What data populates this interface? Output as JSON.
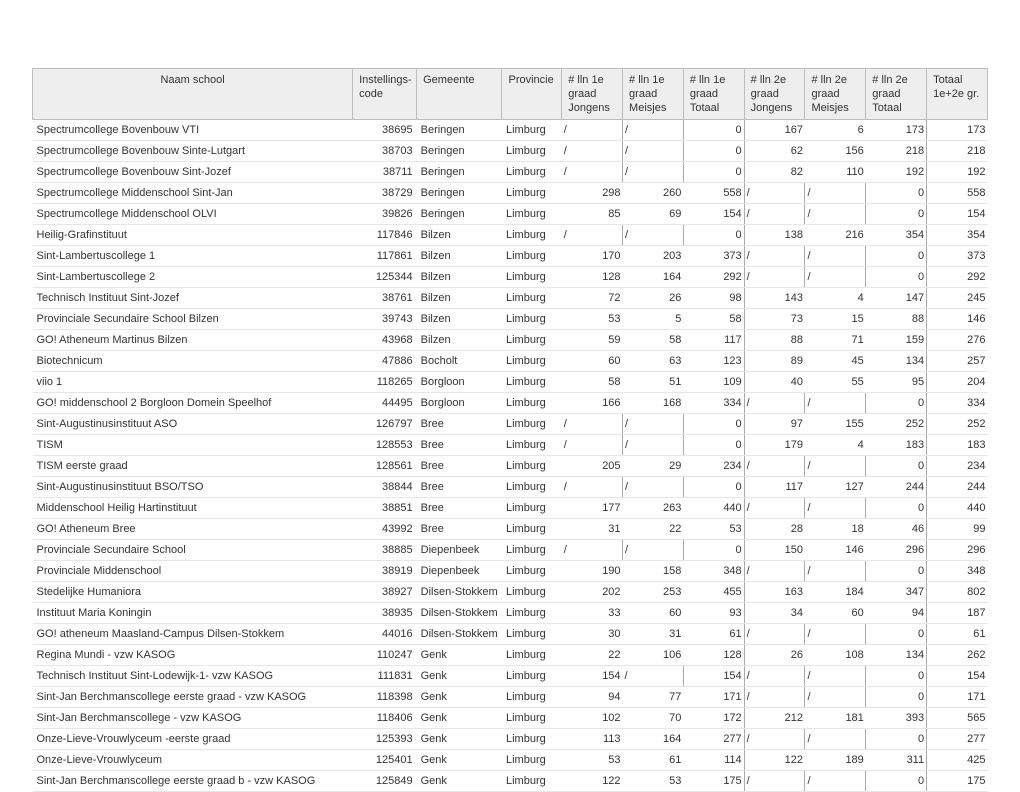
{
  "columns": [
    {
      "key": "naam",
      "label": "Naam school",
      "lines": [
        ""
      ]
    },
    {
      "key": "code",
      "label": "Instellings-",
      "lines": [
        "code"
      ]
    },
    {
      "key": "gemeente",
      "label": "Gemeente",
      "lines": [
        ""
      ]
    },
    {
      "key": "provincie",
      "label": "Provincie",
      "lines": [
        ""
      ]
    },
    {
      "key": "j1",
      "label": "# lln 1e",
      "lines": [
        "graad",
        "Jongens"
      ]
    },
    {
      "key": "m1",
      "label": "# lln 1e",
      "lines": [
        "graad",
        "Meisjes"
      ]
    },
    {
      "key": "t1",
      "label": "# lln 1e",
      "lines": [
        "graad",
        "Totaal"
      ]
    },
    {
      "key": "j2",
      "label": "# lln 2e",
      "lines": [
        "graad",
        "Jongens"
      ]
    },
    {
      "key": "m2",
      "label": "# lln 2e",
      "lines": [
        "graad",
        "Meisjes"
      ]
    },
    {
      "key": "t2",
      "label": "# lln 2e",
      "lines": [
        "graad",
        "Totaal"
      ]
    },
    {
      "key": "tot",
      "label": "Totaal",
      "lines": [
        "1e+2e gr."
      ]
    }
  ],
  "rows": [
    {
      "naam": "Spectrumcollege Bovenbouw VTI",
      "code": "38695",
      "gemeente": "Beringen",
      "provincie": "Limburg",
      "j1": "/",
      "m1": "/",
      "t1": "0",
      "j2": "167",
      "m2": "6",
      "t2": "173",
      "tot": "173"
    },
    {
      "naam": "Spectrumcollege Bovenbouw Sinte-Lutgart",
      "code": "38703",
      "gemeente": "Beringen",
      "provincie": "Limburg",
      "j1": "/",
      "m1": "/",
      "t1": "0",
      "j2": "62",
      "m2": "156",
      "t2": "218",
      "tot": "218"
    },
    {
      "naam": "Spectrumcollege Bovenbouw Sint-Jozef",
      "code": "38711",
      "gemeente": "Beringen",
      "provincie": "Limburg",
      "j1": "/",
      "m1": "/",
      "t1": "0",
      "j2": "82",
      "m2": "110",
      "t2": "192",
      "tot": "192"
    },
    {
      "naam": "Spectrumcollege Middenschool Sint-Jan",
      "code": "38729",
      "gemeente": "Beringen",
      "provincie": "Limburg",
      "j1": "298",
      "m1": "260",
      "t1": "558",
      "j2": "/",
      "m2": "/",
      "t2": "0",
      "tot": "558"
    },
    {
      "naam": "Spectrumcollege Middenschool OLVI",
      "code": "39826",
      "gemeente": "Beringen",
      "provincie": "Limburg",
      "j1": "85",
      "m1": "69",
      "t1": "154",
      "j2": "/",
      "m2": "/",
      "t2": "0",
      "tot": "154"
    },
    {
      "naam": "Heilig-Grafinstituut",
      "code": "117846",
      "gemeente": "Bilzen",
      "provincie": "Limburg",
      "j1": "/",
      "m1": "/",
      "t1": "0",
      "j2": "138",
      "m2": "216",
      "t2": "354",
      "tot": "354"
    },
    {
      "naam": "Sint-Lambertuscollege 1",
      "code": "117861",
      "gemeente": "Bilzen",
      "provincie": "Limburg",
      "j1": "170",
      "m1": "203",
      "t1": "373",
      "j2": "/",
      "m2": "/",
      "t2": "0",
      "tot": "373"
    },
    {
      "naam": "Sint-Lambertuscollege 2",
      "code": "125344",
      "gemeente": "Bilzen",
      "provincie": "Limburg",
      "j1": "128",
      "m1": "164",
      "t1": "292",
      "j2": "/",
      "m2": "/",
      "t2": "0",
      "tot": "292"
    },
    {
      "naam": "Technisch Instituut Sint-Jozef",
      "code": "38761",
      "gemeente": "Bilzen",
      "provincie": "Limburg",
      "j1": "72",
      "m1": "26",
      "t1": "98",
      "j2": "143",
      "m2": "4",
      "t2": "147",
      "tot": "245"
    },
    {
      "naam": "Provinciale Secundaire School Bilzen",
      "code": "39743",
      "gemeente": "Bilzen",
      "provincie": "Limburg",
      "j1": "53",
      "m1": "5",
      "t1": "58",
      "j2": "73",
      "m2": "15",
      "t2": "88",
      "tot": "146"
    },
    {
      "naam": "GO! Atheneum Martinus Bilzen",
      "code": "43968",
      "gemeente": "Bilzen",
      "provincie": "Limburg",
      "j1": "59",
      "m1": "58",
      "t1": "117",
      "j2": "88",
      "m2": "71",
      "t2": "159",
      "tot": "276"
    },
    {
      "naam": "Biotechnicum",
      "code": "47886",
      "gemeente": "Bocholt",
      "provincie": "Limburg",
      "j1": "60",
      "m1": "63",
      "t1": "123",
      "j2": "89",
      "m2": "45",
      "t2": "134",
      "tot": "257"
    },
    {
      "naam": "viio 1",
      "code": "118265",
      "gemeente": "Borgloon",
      "provincie": "Limburg",
      "j1": "58",
      "m1": "51",
      "t1": "109",
      "j2": "40",
      "m2": "55",
      "t2": "95",
      "tot": "204"
    },
    {
      "naam": "GO! middenschool 2 Borgloon Domein Speelhof",
      "code": "44495",
      "gemeente": "Borgloon",
      "provincie": "Limburg",
      "j1": "166",
      "m1": "168",
      "t1": "334",
      "j2": "/",
      "m2": "/",
      "t2": "0",
      "tot": "334"
    },
    {
      "naam": "Sint-Augustinusinstituut ASO",
      "code": "126797",
      "gemeente": "Bree",
      "provincie": "Limburg",
      "j1": "/",
      "m1": "/",
      "t1": "0",
      "j2": "97",
      "m2": "155",
      "t2": "252",
      "tot": "252"
    },
    {
      "naam": "TISM",
      "code": "128553",
      "gemeente": "Bree",
      "provincie": "Limburg",
      "j1": "/",
      "m1": "/",
      "t1": "0",
      "j2": "179",
      "m2": "4",
      "t2": "183",
      "tot": "183"
    },
    {
      "naam": "TISM eerste graad",
      "code": "128561",
      "gemeente": "Bree",
      "provincie": "Limburg",
      "j1": "205",
      "m1": "29",
      "t1": "234",
      "j2": "/",
      "m2": "/",
      "t2": "0",
      "tot": "234"
    },
    {
      "naam": "Sint-Augustinusinstituut BSO/TSO",
      "code": "38844",
      "gemeente": "Bree",
      "provincie": "Limburg",
      "j1": "/",
      "m1": "/",
      "t1": "0",
      "j2": "117",
      "m2": "127",
      "t2": "244",
      "tot": "244"
    },
    {
      "naam": "Middenschool Heilig Hartinstituut",
      "code": "38851",
      "gemeente": "Bree",
      "provincie": "Limburg",
      "j1": "177",
      "m1": "263",
      "t1": "440",
      "j2": "/",
      "m2": "/",
      "t2": "0",
      "tot": "440"
    },
    {
      "naam": "GO! Atheneum Bree",
      "code": "43992",
      "gemeente": "Bree",
      "provincie": "Limburg",
      "j1": "31",
      "m1": "22",
      "t1": "53",
      "j2": "28",
      "m2": "18",
      "t2": "46",
      "tot": "99"
    },
    {
      "naam": "Provinciale Secundaire School",
      "code": "38885",
      "gemeente": "Diepenbeek",
      "provincie": "Limburg",
      "j1": "/",
      "m1": "/",
      "t1": "0",
      "j2": "150",
      "m2": "146",
      "t2": "296",
      "tot": "296"
    },
    {
      "naam": "Provinciale Middenschool",
      "code": "38919",
      "gemeente": "Diepenbeek",
      "provincie": "Limburg",
      "j1": "190",
      "m1": "158",
      "t1": "348",
      "j2": "/",
      "m2": "/",
      "t2": "0",
      "tot": "348"
    },
    {
      "naam": "Stedelijke Humaniora",
      "code": "38927",
      "gemeente": "Dilsen-Stokkem",
      "provincie": "Limburg",
      "j1": "202",
      "m1": "253",
      "t1": "455",
      "j2": "163",
      "m2": "184",
      "t2": "347",
      "tot": "802"
    },
    {
      "naam": "Instituut Maria Koningin",
      "code": "38935",
      "gemeente": "Dilsen-Stokkem",
      "provincie": "Limburg",
      "j1": "33",
      "m1": "60",
      "t1": "93",
      "j2": "34",
      "m2": "60",
      "t2": "94",
      "tot": "187"
    },
    {
      "naam": "GO! atheneum Maasland-Campus Dilsen-Stokkem",
      "code": "44016",
      "gemeente": "Dilsen-Stokkem",
      "provincie": "Limburg",
      "j1": "30",
      "m1": "31",
      "t1": "61",
      "j2": "/",
      "m2": "/",
      "t2": "0",
      "tot": "61"
    },
    {
      "naam": "Regina Mundi - vzw KASOG",
      "code": "110247",
      "gemeente": "Genk",
      "provincie": "Limburg",
      "j1": "22",
      "m1": "106",
      "t1": "128",
      "j2": "26",
      "m2": "108",
      "t2": "134",
      "tot": "262"
    },
    {
      "naam": "Technisch Instituut Sint-Lodewijk-1- vzw KASOG",
      "code": "111831",
      "gemeente": "Genk",
      "provincie": "Limburg",
      "j1": "154",
      "m1": "/",
      "t1": "154",
      "j2": "/",
      "m2": "/",
      "t2": "0",
      "tot": "154"
    },
    {
      "naam": "Sint-Jan Berchmanscollege eerste graad - vzw KASOG",
      "code": "118398",
      "gemeente": "Genk",
      "provincie": "Limburg",
      "j1": "94",
      "m1": "77",
      "t1": "171",
      "j2": "/",
      "m2": "/",
      "t2": "0",
      "tot": "171"
    },
    {
      "naam": "Sint-Jan Berchmanscollege - vzw KASOG",
      "code": "118406",
      "gemeente": "Genk",
      "provincie": "Limburg",
      "j1": "102",
      "m1": "70",
      "t1": "172",
      "j2": "212",
      "m2": "181",
      "t2": "393",
      "tot": "565"
    },
    {
      "naam": "Onze-Lieve-Vrouwlyceum -eerste graad",
      "code": "125393",
      "gemeente": "Genk",
      "provincie": "Limburg",
      "j1": "113",
      "m1": "164",
      "t1": "277",
      "j2": "/",
      "m2": "/",
      "t2": "0",
      "tot": "277"
    },
    {
      "naam": "Onze-Lieve-Vrouwlyceum",
      "code": "125401",
      "gemeente": "Genk",
      "provincie": "Limburg",
      "j1": "53",
      "m1": "61",
      "t1": "114",
      "j2": "122",
      "m2": "189",
      "t2": "311",
      "tot": "425"
    },
    {
      "naam": "Sint-Jan Berchmanscollege eerste graad b - vzw KASOG",
      "code": "125849",
      "gemeente": "Genk",
      "provincie": "Limburg",
      "j1": "122",
      "m1": "53",
      "t1": "175",
      "j2": "/",
      "m2": "/",
      "t2": "0",
      "tot": "175"
    }
  ]
}
